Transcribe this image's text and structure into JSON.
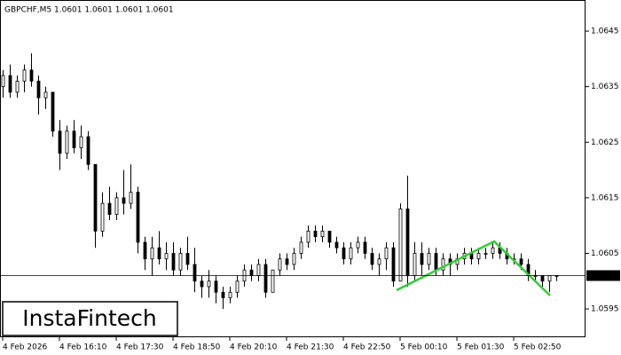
{
  "chart_data": {
    "type": "candlestick",
    "title": "GBPCHF,M5  1.0601 1.0601 1.0601 1.0601",
    "watermark": "InstaFintech",
    "categories": [
      "4 Feb 2026",
      null,
      null,
      null,
      null,
      null,
      null,
      null,
      "4 Feb 16:10",
      null,
      null,
      null,
      null,
      null,
      null,
      null,
      "4 Feb 17:30",
      null,
      null,
      null,
      null,
      null,
      null,
      null,
      "4 Feb 18:50",
      null,
      null,
      null,
      null,
      null,
      null,
      null,
      "4 Feb 20:10",
      null,
      null,
      null,
      null,
      null,
      null,
      null,
      "4 Feb 21:30",
      null,
      null,
      null,
      null,
      null,
      null,
      null,
      "4 Feb 22:50",
      null,
      null,
      null,
      null,
      null,
      null,
      null,
      "5 Feb 00:10",
      null,
      null,
      null,
      null,
      null,
      null,
      null,
      "5 Feb 01:30",
      null,
      null,
      null,
      null,
      null,
      null,
      null,
      "5 Feb 02:50",
      null,
      null,
      null,
      null,
      null,
      null
    ],
    "open": [
      1.0635,
      1.0637,
      1.0634,
      1.0636,
      1.0638,
      1.0636,
      1.0633,
      1.0634,
      1.0627,
      1.0623,
      1.0627,
      1.0624,
      1.0626,
      1.0621,
      1.0609,
      1.0614,
      1.0612,
      1.0615,
      1.0614,
      1.0616,
      1.0607,
      1.0604,
      1.0606,
      1.0604,
      1.0605,
      1.0602,
      1.0605,
      1.0603,
      1.06,
      1.0599,
      1.06,
      1.0598,
      1.0597,
      1.0598,
      1.06,
      1.0602,
      1.0601,
      1.0603,
      1.0598,
      1.0602,
      1.0604,
      1.0603,
      1.0605,
      1.0607,
      1.0609,
      1.0608,
      1.0609,
      1.0607,
      1.0606,
      1.0604,
      1.0606,
      1.0607,
      1.0605,
      1.0603,
      1.0604,
      1.0606,
      1.06,
      1.0613,
      1.0601,
      1.0605,
      1.0603,
      1.0605,
      1.0602,
      1.0604,
      1.0603,
      1.0604,
      1.0605,
      1.0604,
      1.0605,
      1.0605,
      1.0606,
      1.0605,
      1.0604,
      1.0604,
      1.0603,
      1.0601,
      1.0601,
      1.06,
      1.0601
    ],
    "high": [
      1.0638,
      1.0639,
      1.0637,
      1.0639,
      1.0641,
      1.0637,
      1.0635,
      1.0634,
      1.0629,
      1.0628,
      1.0629,
      1.0628,
      1.0627,
      1.0621,
      1.0616,
      1.0617,
      1.0616,
      1.062,
      1.0621,
      1.0617,
      1.0608,
      1.0608,
      1.0609,
      1.0607,
      1.0607,
      1.0606,
      1.0608,
      1.0606,
      1.0601,
      1.0602,
      1.0601,
      1.0599,
      1.0599,
      1.0601,
      1.0603,
      1.0603,
      1.0604,
      1.0604,
      1.0602,
      1.0605,
      1.0605,
      1.0606,
      1.0608,
      1.061,
      1.061,
      1.061,
      1.0609,
      1.0608,
      1.0607,
      1.0607,
      1.0608,
      1.0608,
      1.0606,
      1.0605,
      1.0607,
      1.0607,
      1.0614,
      1.0619,
      1.0607,
      1.0607,
      1.0606,
      1.0606,
      1.0605,
      1.0605,
      1.0605,
      1.0606,
      1.0606,
      1.0606,
      1.0606,
      1.0607,
      1.0607,
      1.0606,
      1.0605,
      1.0605,
      1.0604,
      1.0602,
      1.0601,
      1.0601,
      1.0601
    ],
    "low": [
      1.0633,
      1.0633,
      1.0633,
      1.0634,
      1.0635,
      1.063,
      1.0631,
      1.0626,
      1.062,
      1.0622,
      1.0623,
      1.0622,
      1.062,
      1.0606,
      1.0608,
      1.0611,
      1.0611,
      1.0612,
      1.0613,
      1.0605,
      1.0602,
      1.0601,
      1.0603,
      1.0602,
      1.0601,
      1.0601,
      1.0602,
      1.0598,
      1.0597,
      1.0597,
      1.0596,
      1.0595,
      1.0596,
      1.0597,
      1.0599,
      1.06,
      1.06,
      1.0597,
      1.0598,
      1.0601,
      1.0602,
      1.0602,
      1.0604,
      1.0606,
      1.0607,
      1.0607,
      1.0606,
      1.0605,
      1.0603,
      1.0603,
      1.0605,
      1.0604,
      1.0602,
      1.0601,
      1.0602,
      1.0599,
      1.06,
      1.0599,
      1.06,
      1.0601,
      1.0602,
      1.0601,
      1.0601,
      1.0601,
      1.0602,
      1.0603,
      1.0603,
      1.0603,
      1.0604,
      1.0604,
      1.0604,
      1.0603,
      1.0603,
      1.0602,
      1.06,
      1.06,
      1.0599,
      1.0598,
      1.06
    ],
    "close": [
      1.0637,
      1.0634,
      1.0636,
      1.0638,
      1.0636,
      1.0633,
      1.0634,
      1.0627,
      1.0623,
      1.0627,
      1.0624,
      1.0626,
      1.0621,
      1.0609,
      1.0614,
      1.0612,
      1.0615,
      1.0614,
      1.0616,
      1.0607,
      1.0604,
      1.0606,
      1.0604,
      1.0605,
      1.0602,
      1.0605,
      1.0603,
      1.06,
      1.0599,
      1.06,
      1.0598,
      1.0597,
      1.0598,
      1.06,
      1.0602,
      1.0601,
      1.0603,
      1.0598,
      1.0602,
      1.0604,
      1.0603,
      1.0605,
      1.0607,
      1.0609,
      1.0608,
      1.0609,
      1.0607,
      1.0606,
      1.0604,
      1.0606,
      1.0607,
      1.0605,
      1.0603,
      1.0604,
      1.0606,
      1.06,
      1.0613,
      1.0601,
      1.0605,
      1.0603,
      1.0605,
      1.0602,
      1.0604,
      1.0603,
      1.0604,
      1.0605,
      1.0604,
      1.0605,
      1.0605,
      1.0606,
      1.0605,
      1.0604,
      1.0604,
      1.0603,
      1.0601,
      1.0601,
      1.06,
      1.0601,
      1.0601
    ],
    "ylim": [
      1.05899,
      1.06506
    ],
    "yticks": [
      1.0595,
      1.0605,
      1.0615,
      1.0625,
      1.0635,
      1.0645
    ],
    "last_price": 1.0601,
    "up_color": "#ffffff",
    "down_color": "#000000",
    "pattern_color": "#32cd32"
  }
}
